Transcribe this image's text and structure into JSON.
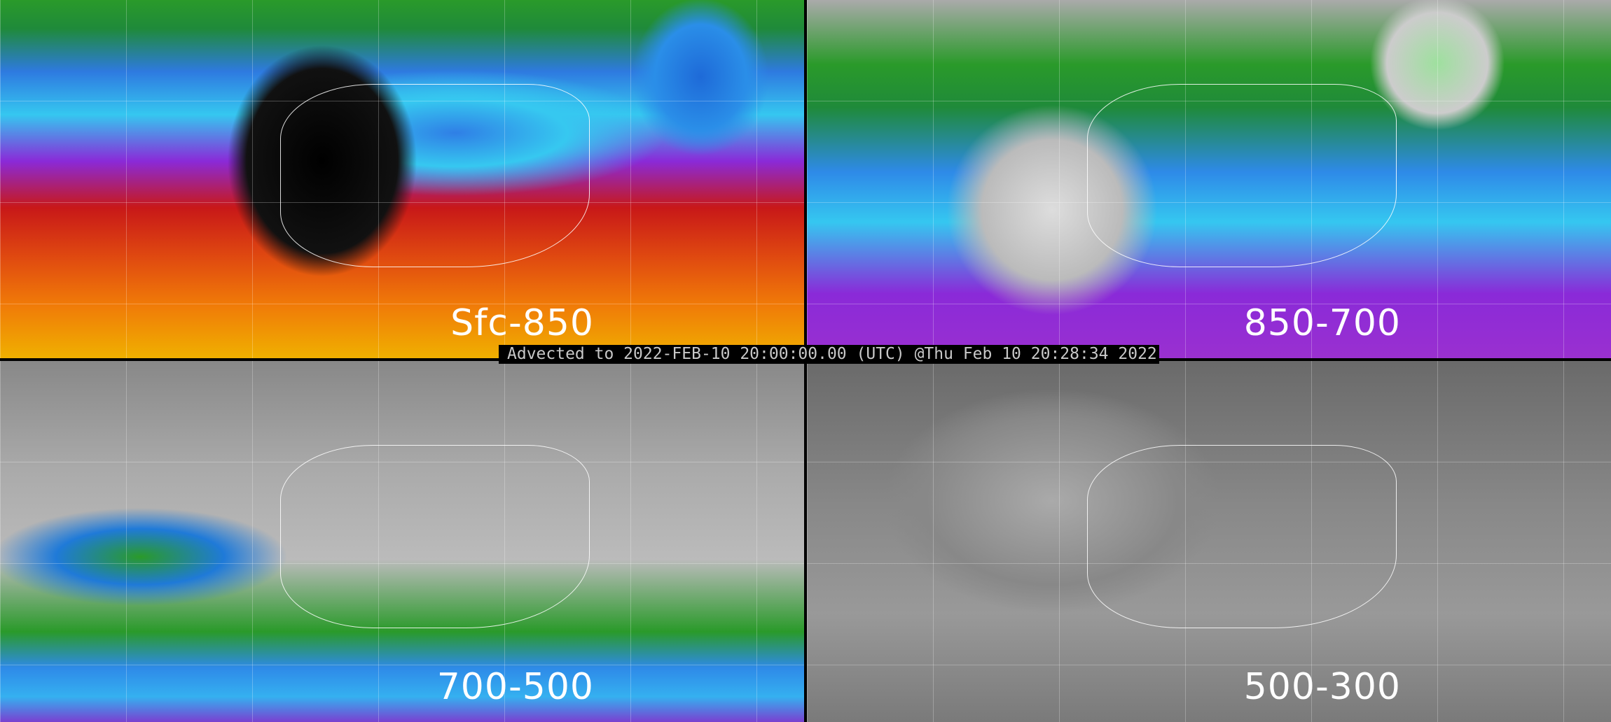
{
  "panels": [
    {
      "label": "Sfc-850"
    },
    {
      "label": "850-700"
    },
    {
      "label": "700-500"
    },
    {
      "label": "500-300"
    }
  ],
  "banner": "Advected to 2022-FEB-10 20:00:00.00 (UTC) @Thu Feb 10 20:28:34 2022",
  "colors": {
    "background": "#000000",
    "banner_text": "#c8c8c8",
    "label": "#ffffff"
  }
}
